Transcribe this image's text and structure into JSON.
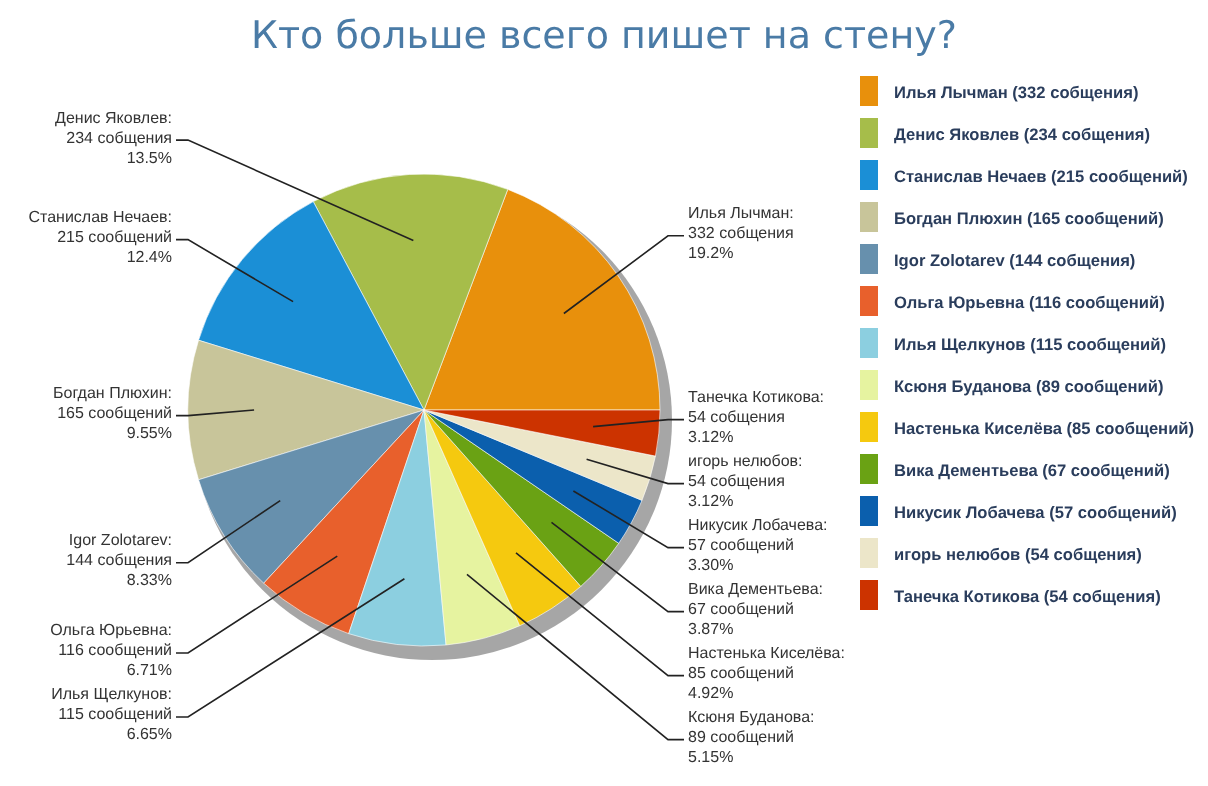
{
  "chart_data": {
    "type": "pie",
    "title": "Кто больше всего пишет на стену?",
    "categories": [
      "Илья Лычман (332 собщения)",
      "Денис Яковлев (234 собщения)",
      "Станислав Нечаев (215 сообщений)",
      "Богдан Плюхин (165 сообщений)",
      "Igor Zolotarev (144 собщения)",
      "Ольга Юрьевна (116 сообщений)",
      "Илья Щелкунов (115 сообщений)",
      "Ксюня Буданова (89 сообщений)",
      "Настенька Киселёва (85 сообщений)",
      "Вика Дементьева (67 сообщений)",
      "Никусик Лобачева (57 сообщений)",
      "игорь нелюбов (54 собщения)",
      "Танечка Котикова (54 собщения)"
    ],
    "values": [
      332,
      234,
      215,
      165,
      144,
      116,
      115,
      89,
      85,
      67,
      57,
      54,
      54
    ],
    "colors": [
      "#e8900c",
      "#a6bd4a",
      "#1b8fd6",
      "#c8c59a",
      "#6790ad",
      "#e8602c",
      "#8ccfe0",
      "#e6f3a0",
      "#f5c90f",
      "#6aa214",
      "#0b5fad",
      "#ece6c9",
      "#cc3300"
    ],
    "value_labels": [
      "Илья Лычман:\n332 собщения\n19.2%",
      "Денис Яковлев:\n234 собщения\n13.5%",
      "Станислав Нечаев:\n215 сообщений\n12.4%",
      "Богдан Плюхин:\n165 сообщений\n9.55%",
      "Igor Zolotarev:\n144 собщения\n8.33%",
      "Ольга Юрьевна:\n116 сообщений\n6.71%",
      "Илья Щелкунов:\n115 сообщений\n6.65%",
      "Ксюня Буданова:\n89 сообщений\n5.15%",
      "Настенька Киселёва:\n85 сообщений\n4.92%",
      "Вика Дементьева:\n67 сообщений\n3.87%",
      "Никусик Лобачева:\n57 сообщений\n3.30%",
      "игорь нелюбов:\n54 собщения\n3.12%",
      "Танечка Котикова:\n54 собщения\n3.12%"
    ],
    "legend": "right"
  }
}
